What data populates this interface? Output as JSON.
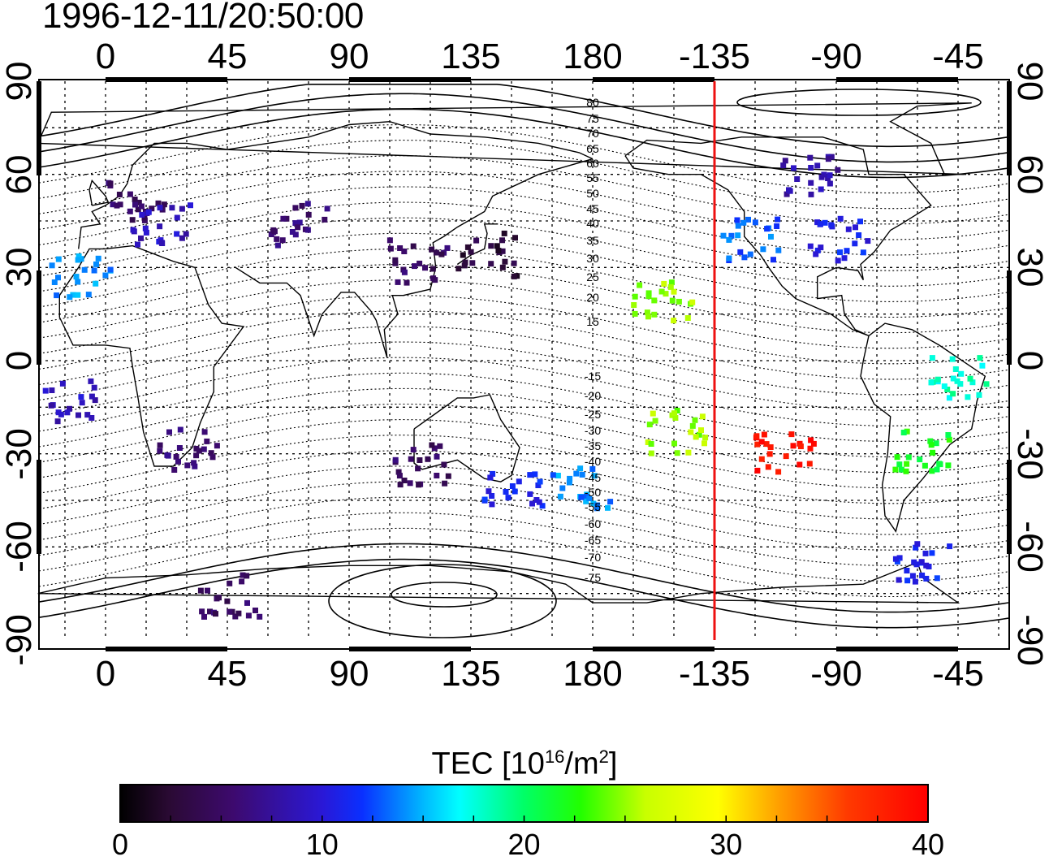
{
  "timestamp": "1996-12-11/20:50:00",
  "map": {
    "projection": "equirectangular",
    "lon_center_ticks": [
      "0",
      "45",
      "90",
      "135",
      "180",
      "-135",
      "-90",
      "-45"
    ],
    "lat_ticks": [
      "90",
      "60",
      "30",
      "0",
      "-30",
      "-60",
      "-90"
    ],
    "marker_line": {
      "lon": -135,
      "color": "#ee1111"
    },
    "contour_labels": [
      "80",
      "75",
      "70",
      "65",
      "60",
      "55",
      "50",
      "45",
      "40",
      "35",
      "30",
      "25",
      "20",
      "15",
      "-15",
      "-20",
      "-25",
      "-30",
      "-35",
      "-40",
      "-45",
      "-50",
      "-55",
      "-60",
      "-65",
      "-70",
      "-75"
    ]
  },
  "colorbar": {
    "label_main": "TEC  [10",
    "label_sup1": "16",
    "label_mid": "/m",
    "label_sup2": "2",
    "label_end": "]",
    "ticks": [
      "0",
      "10",
      "20",
      "30",
      "40"
    ],
    "min": 0,
    "max": 40
  },
  "chart_data": {
    "type": "scatter",
    "title": "1996-12-11/20:50:00",
    "xlabel": "",
    "ylabel": "",
    "xlim": [
      -25,
      335
    ],
    "ylim": [
      -90,
      90
    ],
    "colorscale": {
      "min": 0,
      "max": 40
    },
    "clusters": [
      {
        "lon": 10,
        "lat": 52,
        "tec": 5
      },
      {
        "lon": 20,
        "lat": 45,
        "tec": 9
      },
      {
        "lon": -10,
        "lat": 28,
        "tec": 14
      },
      {
        "lon": -15,
        "lat": -12,
        "tec": 9
      },
      {
        "lon": 30,
        "lat": -28,
        "tec": 6
      },
      {
        "lon": 70,
        "lat": 45,
        "tec": 6
      },
      {
        "lon": 115,
        "lat": 33,
        "tec": 5
      },
      {
        "lon": 140,
        "lat": 35,
        "tec": 3
      },
      {
        "lon": 115,
        "lat": -33,
        "tec": 5
      },
      {
        "lon": 150,
        "lat": -40,
        "tec": 11
      },
      {
        "lon": 175,
        "lat": -40,
        "tec": 14
      },
      {
        "lon": 205,
        "lat": 20,
        "tec": 25
      },
      {
        "lon": 210,
        "lat": -22,
        "tec": 25
      },
      {
        "lon": -122,
        "lat": 40,
        "tec": 13
      },
      {
        "lon": -90,
        "lat": 40,
        "tec": 11
      },
      {
        "lon": -100,
        "lat": 60,
        "tec": 8
      },
      {
        "lon": -110,
        "lat": -28,
        "tec": 39
      },
      {
        "lon": -60,
        "lat": -28,
        "tec": 22
      },
      {
        "lon": -45,
        "lat": -5,
        "tec": 18
      },
      {
        "lon": -60,
        "lat": -65,
        "tec": 11
      },
      {
        "lon": 45,
        "lat": -75,
        "tec": 5
      }
    ]
  }
}
